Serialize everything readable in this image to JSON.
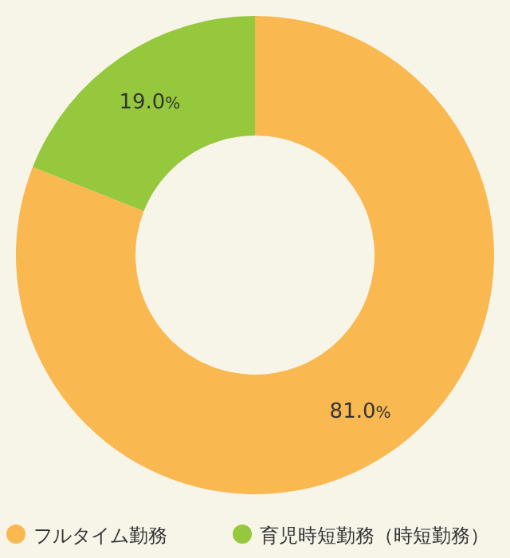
{
  "chart_data": {
    "type": "donut",
    "categories": [
      "フルタイム勤務",
      "育児時短勤務（時短勤務）"
    ],
    "values": [
      81.0,
      19.0
    ],
    "colors": [
      "#f9b850",
      "#95c83c"
    ],
    "value_labels": [
      "81.0%",
      "19.0%"
    ],
    "legend": "bottom"
  }
}
